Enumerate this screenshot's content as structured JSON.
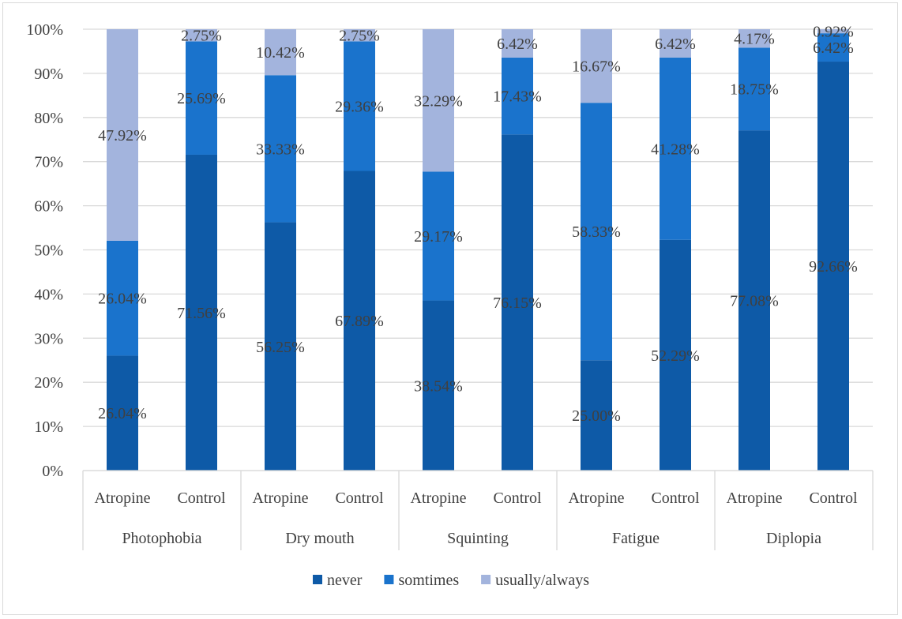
{
  "chart_data": {
    "type": "bar",
    "stacked": true,
    "percent": true,
    "groups": [
      "Photophobia",
      "Dry mouth",
      "Squinting",
      "Fatigue",
      "Diplopia"
    ],
    "subcategories": [
      "Atropine",
      "Control"
    ],
    "categories": [
      "Photophobia / Atropine",
      "Photophobia / Control",
      "Dry mouth / Atropine",
      "Dry mouth / Control",
      "Squinting / Atropine",
      "Squinting / Control",
      "Fatigue / Atropine",
      "Fatigue / Control",
      "Diplopia / Atropine",
      "Diplopia / Control"
    ],
    "series": [
      {
        "name": "never",
        "color": "#0e5aa7",
        "values": [
          26.04,
          71.56,
          56.25,
          67.89,
          38.54,
          76.15,
          25.0,
          52.29,
          77.08,
          92.66
        ],
        "labels": [
          "26.04%",
          "71.56%",
          "56.25%",
          "67.89%",
          "38.54%",
          "76.15%",
          "25.00%",
          "52.29%",
          "77.08%",
          "92.66%"
        ]
      },
      {
        "name": "somtimes",
        "color": "#1a73cc",
        "values": [
          26.04,
          25.69,
          33.33,
          29.36,
          29.17,
          17.43,
          58.33,
          41.28,
          18.75,
          6.42
        ],
        "labels": [
          "26.04%",
          "25.69%",
          "33.33%",
          "29.36%",
          "29.17%",
          "17.43%",
          "58.33%",
          "41.28%",
          "18.75%",
          "6.42%"
        ]
      },
      {
        "name": "usually/always",
        "color": "#a3b4dd",
        "values": [
          47.92,
          2.75,
          10.42,
          2.75,
          32.29,
          6.42,
          16.67,
          6.42,
          4.17,
          0.92
        ],
        "labels": [
          "47.92%",
          "2.75%",
          "10.42%",
          "2.75%",
          "32.29%",
          "6.42%",
          "16.67%",
          "6.42%",
          "4.17%",
          "0.92%"
        ]
      }
    ],
    "yticks": [
      "0%",
      "10%",
      "20%",
      "30%",
      "40%",
      "50%",
      "60%",
      "70%",
      "80%",
      "90%",
      "100%"
    ],
    "ylim": [
      0,
      100
    ],
    "legend_position": "bottom",
    "grid": true,
    "title": "",
    "xlabel": "",
    "ylabel": ""
  }
}
